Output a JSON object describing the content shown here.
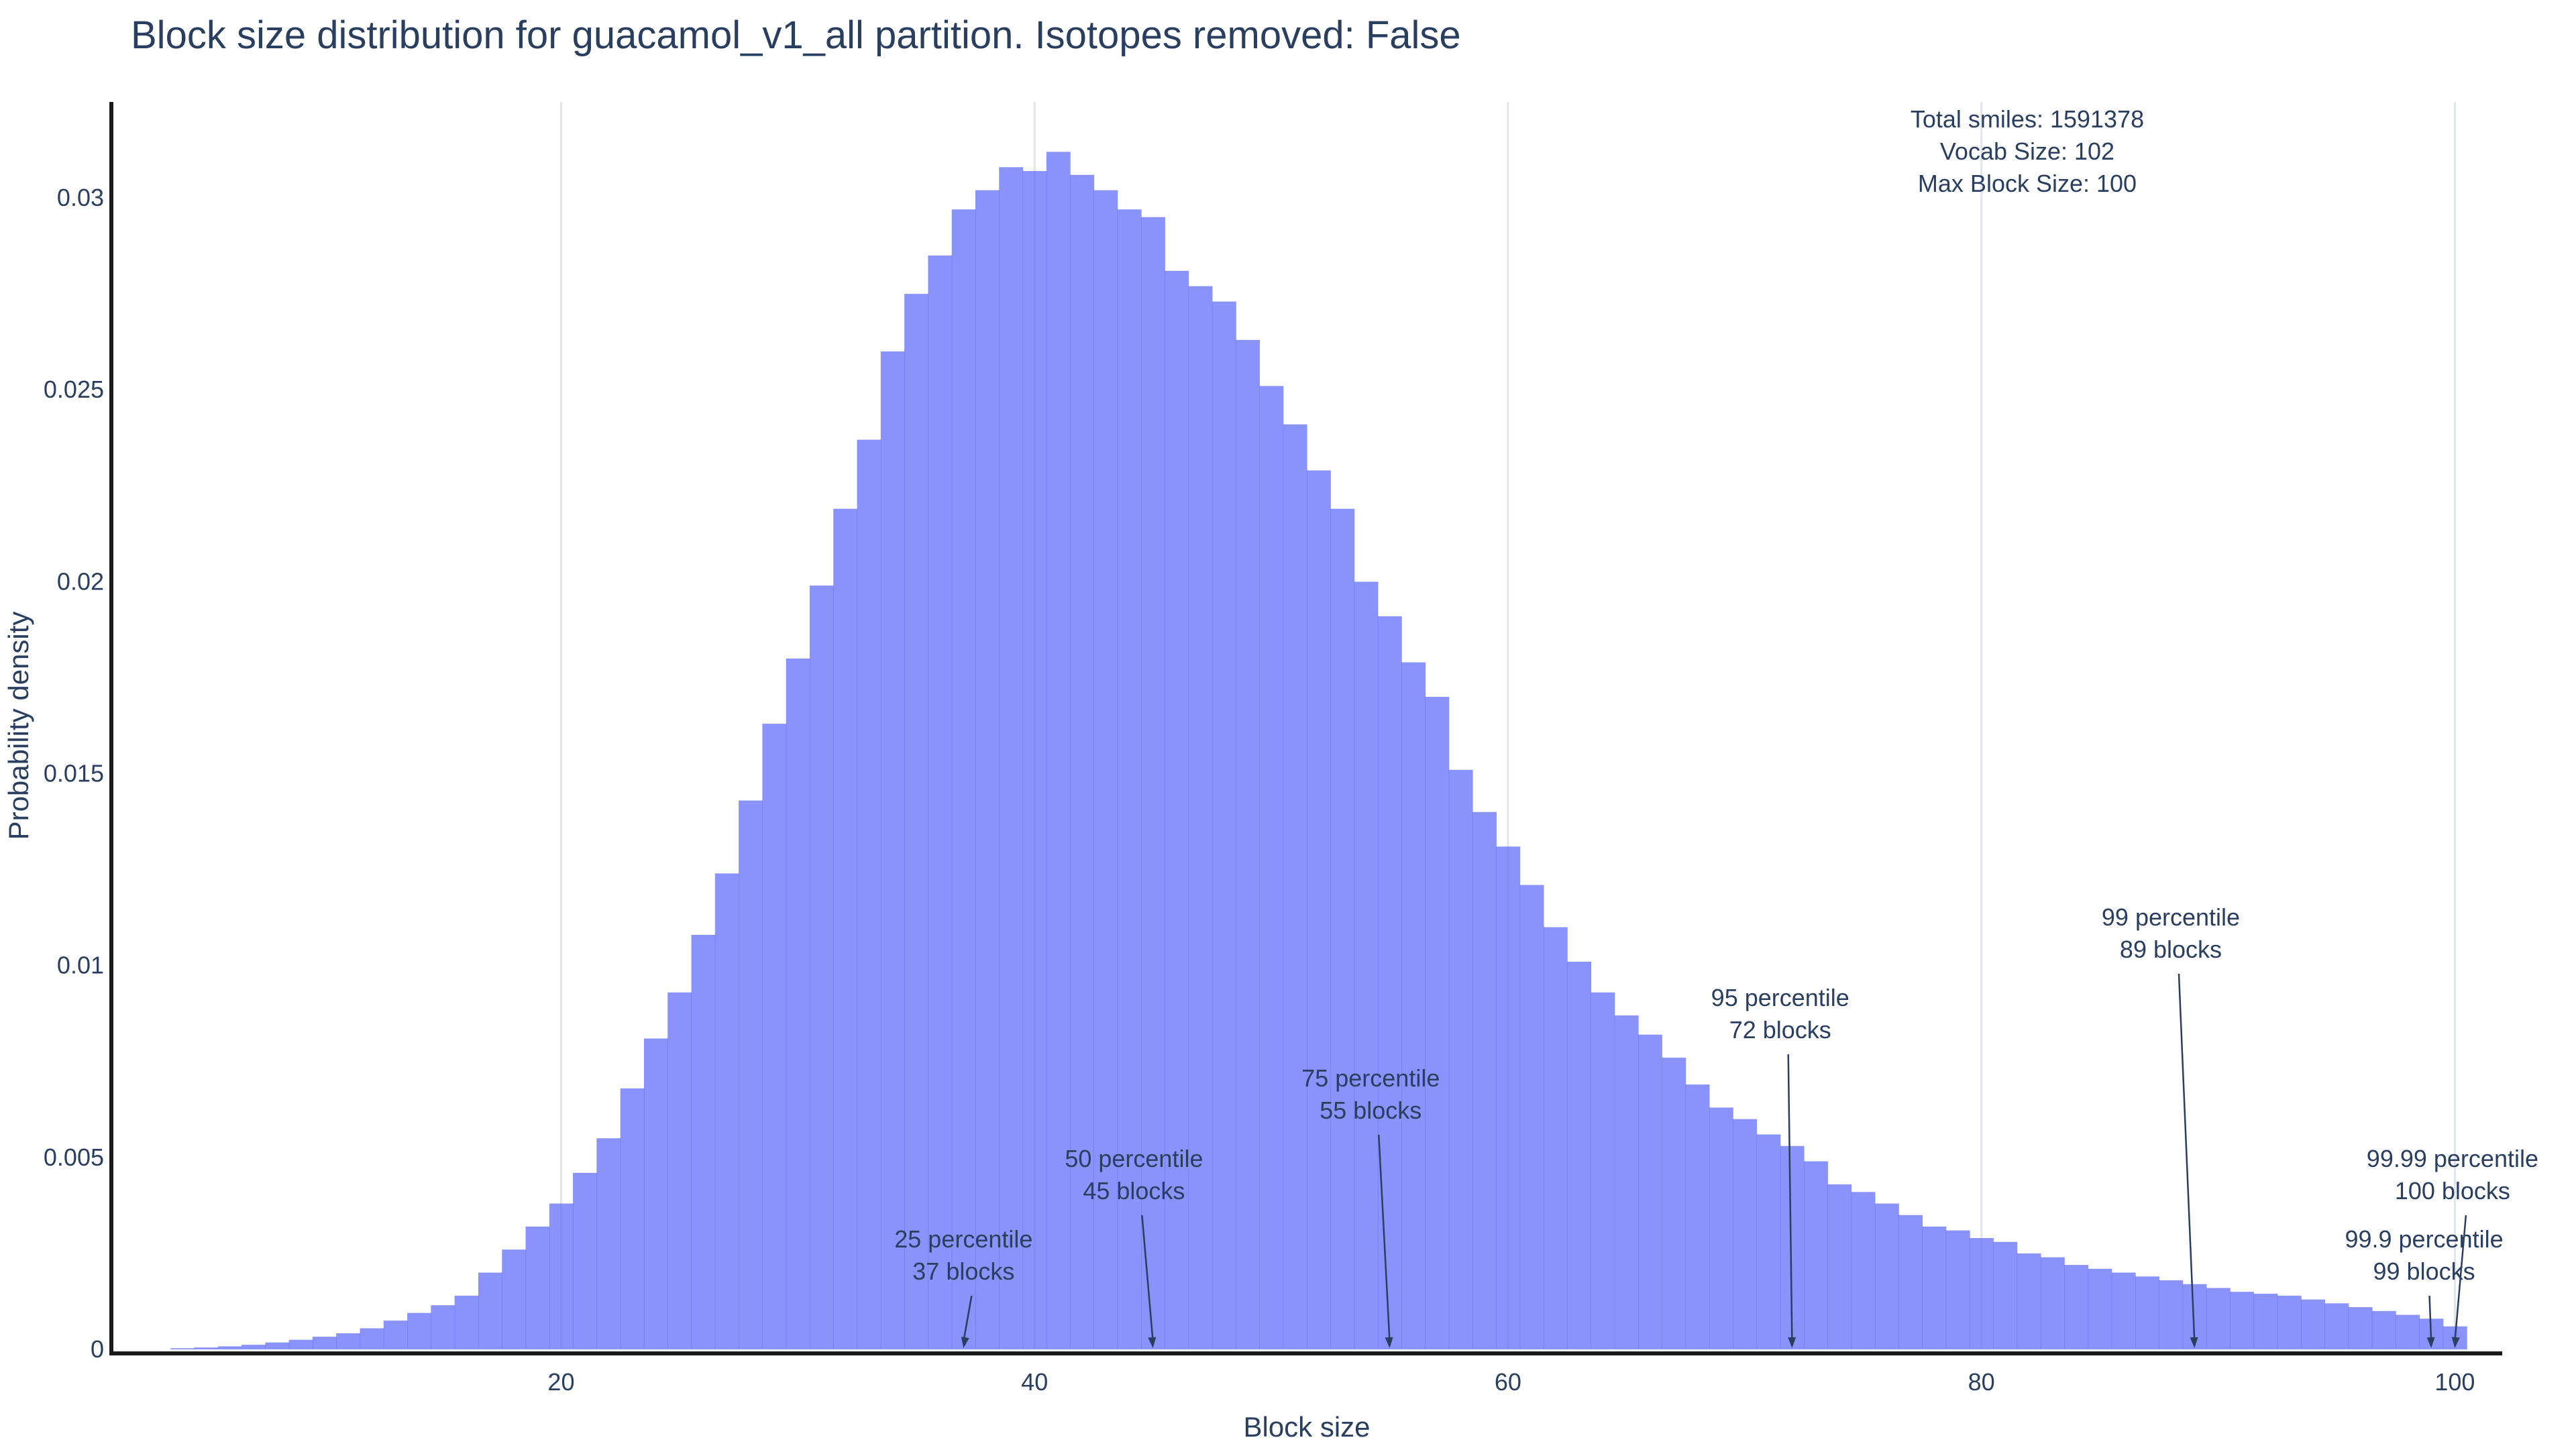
{
  "chart_data": {
    "type": "bar",
    "title": "Block size distribution for guacamol_v1_all partition. Isotopes removed: False",
    "xlabel": "Block size",
    "ylabel": "Probability density",
    "xlim": [
      1,
      102
    ],
    "ylim": [
      0,
      0.0325
    ],
    "x_ticks": [
      20,
      40,
      60,
      80,
      100
    ],
    "y_ticks": [
      0,
      0.005,
      0.01,
      0.015,
      0.02,
      0.025,
      0.03
    ],
    "y_tick_labels": [
      "0",
      "0.005",
      "0.01",
      "0.015",
      "0.02",
      "0.025",
      "0.03"
    ],
    "grid": "vertical",
    "bar_color": "#636efa",
    "bins": [
      4,
      5,
      6,
      7,
      8,
      9,
      10,
      11,
      12,
      13,
      14,
      15,
      16,
      17,
      18,
      19,
      20,
      21,
      22,
      23,
      24,
      25,
      26,
      27,
      28,
      29,
      30,
      31,
      32,
      33,
      34,
      35,
      36,
      37,
      38,
      39,
      40,
      41,
      42,
      43,
      44,
      45,
      46,
      47,
      48,
      49,
      50,
      51,
      52,
      53,
      54,
      55,
      56,
      57,
      58,
      59,
      60,
      61,
      62,
      63,
      64,
      65,
      66,
      67,
      68,
      69,
      70,
      71,
      72,
      73,
      74,
      75,
      76,
      77,
      78,
      79,
      80,
      81,
      82,
      83,
      84,
      85,
      86,
      87,
      88,
      89,
      90,
      91,
      92,
      93,
      94,
      95,
      96,
      97,
      98,
      99,
      100
    ],
    "values": [
      3e-05,
      5e-05,
      8e-05,
      0.00012,
      0.00018,
      0.00025,
      0.00033,
      0.00042,
      0.00055,
      0.00075,
      0.00095,
      0.00115,
      0.0014,
      0.002,
      0.0026,
      0.0032,
      0.0038,
      0.0046,
      0.0055,
      0.0068,
      0.0081,
      0.0093,
      0.0108,
      0.0124,
      0.0143,
      0.0163,
      0.018,
      0.0199,
      0.0219,
      0.0237,
      0.026,
      0.0275,
      0.0285,
      0.0297,
      0.0302,
      0.0308,
      0.0307,
      0.0312,
      0.0306,
      0.0302,
      0.0297,
      0.0295,
      0.0281,
      0.0277,
      0.0273,
      0.0263,
      0.0251,
      0.0241,
      0.0229,
      0.0219,
      0.02,
      0.0191,
      0.0179,
      0.017,
      0.0151,
      0.014,
      0.0131,
      0.0121,
      0.011,
      0.0101,
      0.0093,
      0.0087,
      0.0082,
      0.0076,
      0.0069,
      0.0063,
      0.006,
      0.0056,
      0.0053,
      0.0049,
      0.0043,
      0.0041,
      0.0038,
      0.0035,
      0.0032,
      0.0031,
      0.0029,
      0.0028,
      0.0025,
      0.0024,
      0.0022,
      0.0021,
      0.002,
      0.0019,
      0.0018,
      0.0017,
      0.0016,
      0.0015,
      0.00145,
      0.0014,
      0.0013,
      0.0012,
      0.0011,
      0.001,
      0.0009,
      0.0008,
      0.0006
    ],
    "annotations": [
      {
        "line1": "25 percentile",
        "line2": "37 blocks",
        "x": 37
      },
      {
        "line1": "50 percentile",
        "line2": "45 blocks",
        "x": 45
      },
      {
        "line1": "75 percentile",
        "line2": "55 blocks",
        "x": 55
      },
      {
        "line1": "95 percentile",
        "line2": "72 blocks",
        "x": 72
      },
      {
        "line1": "99 percentile",
        "line2": "89 blocks",
        "x": 89
      },
      {
        "line1": "99.9 percentile",
        "line2": "99 blocks",
        "x": 99
      },
      {
        "line1": "99.99 percentile",
        "line2": "100 blocks",
        "x": 100
      }
    ],
    "info_box": {
      "total_smiles": "Total smiles: 1591378",
      "vocab_size": "Vocab Size: 102",
      "max_block_size": "Max Block Size: 100"
    }
  }
}
